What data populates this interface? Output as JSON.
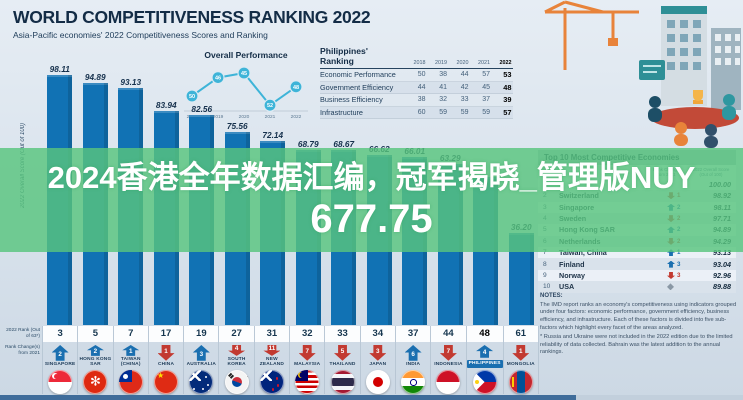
{
  "header": {
    "title": "WORLD COMPETITIVENESS RANKING 2022",
    "subtitle": "Asia-Pacific economies' 2022 Competitiveness Scores and Ranking"
  },
  "overlay": {
    "line1": "2024香港全年数据汇编，冠军揭晓_管理版NUY",
    "line2": "677.75",
    "bg_color": "#58c47e"
  },
  "axis": {
    "y_label": "2022 Overall Score (Out of 100)",
    "rank_label": "2022 Rank (Out of 63*)",
    "change_label": "Rank Change(s) from 2021"
  },
  "colors": {
    "bar": "#1172b4",
    "up_arrow": "#1a6fb0",
    "down_arrow": "#c23a31",
    "line_chart": "#3eb4d8",
    "navy_text": "#16364f"
  },
  "chart_data": [
    {
      "type": "bar",
      "title": "Asia-Pacific economies' 2022 Competitiveness Scores and Ranking",
      "ylabel": "2022 Overall Score (Out of 100)",
      "ylim": [
        0,
        100
      ],
      "categories": [
        "SINGAPORE",
        "HONG KONG SAR",
        "TAIWAN (CHINA)",
        "CHINA",
        "AUSTRALIA",
        "SOUTH KOREA",
        "NEW ZEALAND",
        "MALAYSIA",
        "THAILAND",
        "JAPAN",
        "INDIA",
        "INDONESIA",
        "PHILIPPINES",
        "MONGOLIA"
      ],
      "values": [
        98.11,
        94.89,
        93.13,
        83.94,
        82.56,
        75.56,
        72.14,
        68.79,
        68.67,
        66.62,
        66.01,
        63.29,
        58.2,
        36.2
      ],
      "value_labels": [
        "98.11",
        "94.89",
        "93.13",
        "83.94",
        "82.56",
        "75.56",
        "72.14",
        "68.79",
        "68.67",
        "66.62",
        "66.01",
        "63.29",
        "",
        "36.20"
      ],
      "ranks_2022": [
        "3",
        "5",
        "7",
        "17",
        "19",
        "27",
        "31",
        "32",
        "33",
        "34",
        "37",
        "44",
        "48",
        "61"
      ],
      "rank_change_from_2021": [
        "+2",
        "+2",
        "+1",
        "-1",
        "+3",
        "-4",
        "-11",
        "-7",
        "-5",
        "-3",
        "+6",
        "-7",
        "+4",
        "-1"
      ],
      "flags": [
        "sg",
        "hk",
        "tw",
        "cn",
        "au",
        "kr",
        "nz",
        "my",
        "th",
        "jp",
        "in",
        "id",
        "ph",
        "mn"
      ],
      "highlight_index": 12
    },
    {
      "type": "line",
      "title": "Overall Performance",
      "x": [
        "2018",
        "2019",
        "2020",
        "2021",
        "2022"
      ],
      "values": [
        50,
        46,
        45,
        52,
        48
      ],
      "y_inverted": true
    },
    {
      "type": "table",
      "title": "Philippines' Ranking",
      "columns": [
        "2018",
        "2019",
        "2020",
        "2021",
        "2022"
      ],
      "rows": [
        {
          "label": "Economic Performance",
          "values": [
            "50",
            "38",
            "44",
            "57",
            "53"
          ]
        },
        {
          "label": "Government Efficiency",
          "values": [
            "44",
            "41",
            "42",
            "45",
            "48"
          ]
        },
        {
          "label": "Business Efficiency",
          "values": [
            "38",
            "32",
            "33",
            "37",
            "39"
          ]
        },
        {
          "label": "Infrastructure",
          "values": [
            "60",
            "59",
            "59",
            "59",
            "57"
          ]
        }
      ]
    },
    {
      "type": "table",
      "title": "Top 10 Most Competitive Economies",
      "columns": [
        "Rank",
        "Economy",
        "Rank Change from 2021",
        "2022 Overall Score (Out of 100)"
      ],
      "rows": [
        {
          "rank": "1",
          "name": "",
          "change": "",
          "score": "100.00"
        },
        {
          "rank": "2",
          "name": "Switzerland",
          "change": "-1",
          "score": "98.92"
        },
        {
          "rank": "3",
          "name": "Singapore",
          "change": "+2",
          "score": "98.11"
        },
        {
          "rank": "4",
          "name": "Sweden",
          "change": "-2",
          "score": "97.71"
        },
        {
          "rank": "5",
          "name": "Hong Kong SAR",
          "change": "+2",
          "score": "94.89"
        },
        {
          "rank": "6",
          "name": "Netherlands",
          "change": "-2",
          "score": "94.29"
        },
        {
          "rank": "7",
          "name": "Taiwan, China",
          "change": "+1",
          "score": "93.13"
        },
        {
          "rank": "8",
          "name": "Finland",
          "change": "+3",
          "score": "93.04"
        },
        {
          "rank": "9",
          "name": "Norway",
          "change": "-3",
          "score": "92.96"
        },
        {
          "rank": "10",
          "name": "USA",
          "change": "0",
          "score": "89.88"
        }
      ]
    }
  ],
  "notes": {
    "heading": "NOTES:",
    "p1": "The IMD report ranks an economy's competitiveness using indicators grouped under four factors: economic performance, government efficiency, business efficiency, and infrastructure. Each of these factors is divided into five sub-factors which highlight every facet of the areas analyzed.",
    "p2": "* Russia and Ukraine were not included in the 2022 edition due to the limited reliability of data collected. Bahrain was the latest addition to the annual rankings."
  }
}
